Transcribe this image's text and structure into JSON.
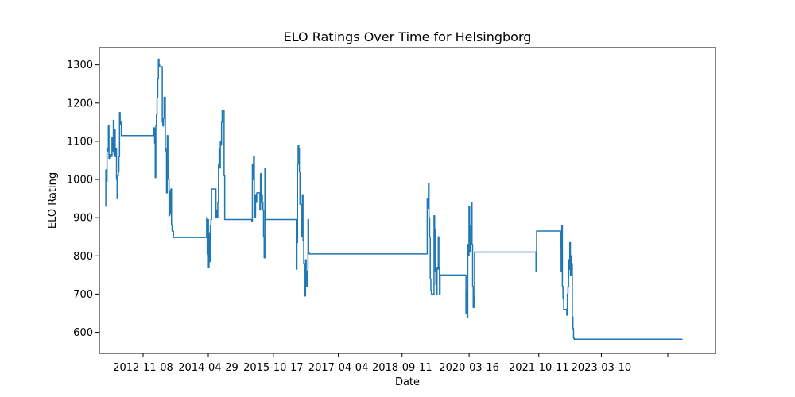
{
  "chart_data": {
    "type": "line",
    "title": "ELO Ratings Over Time for Helsingborg",
    "xlabel": "Date",
    "ylabel": "ELO Rating",
    "xlim": [
      "2011-11-14",
      "2025-10-05"
    ],
    "ylim": [
      545,
      1345
    ],
    "x_ticks": [
      "2012-11-08",
      "2014-04-29",
      "2015-10-17",
      "2017-04-04",
      "2018-09-11",
      "2020-03-16",
      "2021-10-11",
      "2023-03-10",
      ""
    ],
    "x_tick_dates": [
      "2012-11-08",
      "2014-04-29",
      "2015-10-17",
      "2017-04-04",
      "2018-09-11",
      "2020-03-16",
      "2021-10-11",
      "2023-03-10",
      "2024-09-07"
    ],
    "y_ticks": [
      600,
      700,
      800,
      900,
      1000,
      1100,
      1200,
      1300
    ],
    "grid": false,
    "legend": "none",
    "colors": {
      "line": "#1f77b4",
      "axis": "#000000",
      "background": "#ffffff"
    },
    "series": [
      {
        "points": [
          [
            "2012-01-01",
            930
          ],
          [
            "2012-01-06",
            1025
          ],
          [
            "2012-01-11",
            995
          ],
          [
            "2012-01-16",
            1080
          ],
          [
            "2012-01-21",
            1075
          ],
          [
            "2012-01-27",
            1140
          ],
          [
            "2012-02-01",
            1055
          ],
          [
            "2012-02-06",
            1065
          ],
          [
            "2012-02-11",
            1060
          ],
          [
            "2012-02-21",
            1060
          ],
          [
            "2012-02-26",
            1110
          ],
          [
            "2012-03-03",
            1075
          ],
          [
            "2012-03-08",
            1155
          ],
          [
            "2012-03-13",
            1065
          ],
          [
            "2012-03-18",
            1130
          ],
          [
            "2012-03-23",
            1060
          ],
          [
            "2012-03-28",
            1080
          ],
          [
            "2012-04-03",
            1000
          ],
          [
            "2012-04-08",
            950
          ],
          [
            "2012-04-13",
            1010
          ],
          [
            "2012-04-18",
            1020
          ],
          [
            "2012-04-23",
            1060
          ],
          [
            "2012-04-28",
            1175
          ],
          [
            "2012-05-03",
            1145
          ],
          [
            "2012-05-08",
            1150
          ],
          [
            "2012-05-13",
            1115
          ],
          [
            "2012-06-01",
            1115
          ],
          [
            "2013-02-01",
            1115
          ],
          [
            "2013-02-06",
            1135
          ],
          [
            "2013-02-11",
            1095
          ],
          [
            "2013-02-16",
            1005
          ],
          [
            "2013-02-21",
            1140
          ],
          [
            "2013-02-26",
            1170
          ],
          [
            "2013-03-03",
            1215
          ],
          [
            "2013-03-09",
            1265
          ],
          [
            "2013-03-14",
            1315
          ],
          [
            "2013-03-19",
            1300
          ],
          [
            "2013-03-24",
            1295
          ],
          [
            "2013-04-10",
            1295
          ],
          [
            "2013-04-15",
            1150
          ],
          [
            "2013-04-20",
            1140
          ],
          [
            "2013-04-25",
            1160
          ],
          [
            "2013-04-30",
            1215
          ],
          [
            "2013-05-10",
            1080
          ],
          [
            "2013-05-15",
            1075
          ],
          [
            "2013-05-20",
            965
          ],
          [
            "2013-05-26",
            1115
          ],
          [
            "2013-05-31",
            1050
          ],
          [
            "2013-06-05",
            1000
          ],
          [
            "2013-06-10",
            905
          ],
          [
            "2013-06-15",
            970
          ],
          [
            "2013-06-20",
            910
          ],
          [
            "2013-06-25",
            975
          ],
          [
            "2013-06-30",
            880
          ],
          [
            "2013-07-05",
            865
          ],
          [
            "2013-07-16",
            848
          ],
          [
            "2014-04-10",
            848
          ],
          [
            "2014-04-15",
            900
          ],
          [
            "2014-04-20",
            805
          ],
          [
            "2014-04-25",
            895
          ],
          [
            "2014-04-30",
            770
          ],
          [
            "2014-05-05",
            860
          ],
          [
            "2014-05-10",
            785
          ],
          [
            "2014-05-16",
            880
          ],
          [
            "2014-05-21",
            895
          ],
          [
            "2014-05-26",
            975
          ],
          [
            "2014-06-26",
            975
          ],
          [
            "2014-07-01",
            900
          ],
          [
            "2014-07-06",
            920
          ],
          [
            "2014-07-11",
            900
          ],
          [
            "2014-07-16",
            940
          ],
          [
            "2014-07-22",
            1040
          ],
          [
            "2014-07-27",
            1080
          ],
          [
            "2014-08-01",
            1030
          ],
          [
            "2014-08-06",
            1100
          ],
          [
            "2014-08-11",
            1090
          ],
          [
            "2014-08-16",
            1150
          ],
          [
            "2014-08-21",
            1180
          ],
          [
            "2014-09-01",
            1180
          ],
          [
            "2014-09-06",
            1010
          ],
          [
            "2014-09-11",
            895
          ],
          [
            "2015-04-17",
            895
          ],
          [
            "2015-04-22",
            890
          ],
          [
            "2015-04-27",
            1040
          ],
          [
            "2015-05-02",
            1000
          ],
          [
            "2015-05-07",
            1060
          ],
          [
            "2015-05-13",
            930
          ],
          [
            "2015-05-18",
            900
          ],
          [
            "2015-05-23",
            960
          ],
          [
            "2015-05-28",
            940
          ],
          [
            "2015-06-02",
            965
          ],
          [
            "2015-06-22",
            965
          ],
          [
            "2015-06-28",
            920
          ],
          [
            "2015-07-03",
            1015
          ],
          [
            "2015-07-08",
            940
          ],
          [
            "2015-07-13",
            960
          ],
          [
            "2015-07-18",
            940
          ],
          [
            "2015-07-23",
            920
          ],
          [
            "2015-07-28",
            850
          ],
          [
            "2015-08-02",
            795
          ],
          [
            "2015-08-08",
            1030
          ],
          [
            "2015-08-13",
            895
          ],
          [
            "2016-04-18",
            895
          ],
          [
            "2016-04-23",
            765
          ],
          [
            "2016-04-28",
            835
          ],
          [
            "2016-05-03",
            1040
          ],
          [
            "2016-05-08",
            1090
          ],
          [
            "2016-05-13",
            1080
          ],
          [
            "2016-05-18",
            1020
          ],
          [
            "2016-05-23",
            935
          ],
          [
            "2016-05-28",
            935
          ],
          [
            "2016-06-02",
            870
          ],
          [
            "2016-06-07",
            850
          ],
          [
            "2016-06-12",
            960
          ],
          [
            "2016-06-17",
            840
          ],
          [
            "2016-06-23",
            780
          ],
          [
            "2016-06-28",
            700
          ],
          [
            "2016-07-03",
            695
          ],
          [
            "2016-07-08",
            790
          ],
          [
            "2016-07-13",
            750
          ],
          [
            "2016-07-18",
            720
          ],
          [
            "2016-07-23",
            760
          ],
          [
            "2016-07-28",
            895
          ],
          [
            "2016-08-02",
            810
          ],
          [
            "2016-08-07",
            805
          ],
          [
            "2019-04-01",
            805
          ],
          [
            "2019-04-06",
            950
          ],
          [
            "2019-04-11",
            925
          ],
          [
            "2019-04-16",
            990
          ],
          [
            "2019-04-21",
            900
          ],
          [
            "2019-04-26",
            850
          ],
          [
            "2019-05-01",
            740
          ],
          [
            "2019-05-06",
            710
          ],
          [
            "2019-05-11",
            700
          ],
          [
            "2019-05-27",
            700
          ],
          [
            "2019-06-01",
            905
          ],
          [
            "2019-06-06",
            870
          ],
          [
            "2019-06-11",
            760
          ],
          [
            "2019-06-16",
            725
          ],
          [
            "2019-06-21",
            700
          ],
          [
            "2019-06-26",
            770
          ],
          [
            "2019-07-01",
            765
          ],
          [
            "2019-07-06",
            850
          ],
          [
            "2019-07-11",
            770
          ],
          [
            "2019-07-16",
            700
          ],
          [
            "2019-07-21",
            750
          ],
          [
            "2020-02-14",
            750
          ],
          [
            "2020-02-19",
            650
          ],
          [
            "2020-02-24",
            710
          ],
          [
            "2020-02-29",
            640
          ],
          [
            "2020-03-05",
            830
          ],
          [
            "2020-03-10",
            800
          ],
          [
            "2020-03-15",
            930
          ],
          [
            "2020-03-20",
            840
          ],
          [
            "2020-03-25",
            810
          ],
          [
            "2020-03-30",
            880
          ],
          [
            "2020-04-04",
            940
          ],
          [
            "2020-04-09",
            830
          ],
          [
            "2020-04-14",
            720
          ],
          [
            "2020-04-19",
            665
          ],
          [
            "2020-04-25",
            690
          ],
          [
            "2020-04-30",
            810
          ],
          [
            "2021-09-13",
            810
          ],
          [
            "2021-09-18",
            760
          ],
          [
            "2021-09-23",
            865
          ],
          [
            "2022-04-03",
            865
          ],
          [
            "2022-04-08",
            820
          ],
          [
            "2022-04-13",
            760
          ],
          [
            "2022-04-18",
            880
          ],
          [
            "2022-04-23",
            720
          ],
          [
            "2022-04-28",
            690
          ],
          [
            "2022-05-04",
            660
          ],
          [
            "2022-05-24",
            660
          ],
          [
            "2022-05-29",
            645
          ],
          [
            "2022-06-03",
            700
          ],
          [
            "2022-06-08",
            720
          ],
          [
            "2022-06-13",
            790
          ],
          [
            "2022-06-18",
            765
          ],
          [
            "2022-06-23",
            835
          ],
          [
            "2022-06-28",
            750
          ],
          [
            "2022-07-03",
            800
          ],
          [
            "2022-07-08",
            780
          ],
          [
            "2022-07-14",
            640
          ],
          [
            "2022-07-19",
            610
          ],
          [
            "2022-07-24",
            585
          ],
          [
            "2022-07-29",
            582
          ],
          [
            "2025-01-06",
            582
          ]
        ]
      }
    ]
  }
}
